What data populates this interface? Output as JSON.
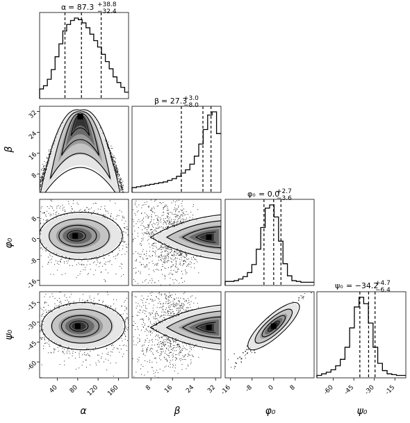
{
  "chart_data": {
    "type": "corner",
    "params": [
      "alpha",
      "beta",
      "phi0",
      "psi0"
    ],
    "axis_labels": [
      "α",
      "β",
      "φ₀",
      "ψ₀"
    ],
    "titles": [
      {
        "param": "alpha",
        "sym": "α",
        "median": "87.3",
        "plus": "+38.8",
        "minus": "−32.4"
      },
      {
        "param": "beta",
        "sym": "β",
        "median": "27.3",
        "plus": "+3.0",
        "minus": "−8.0"
      },
      {
        "param": "phi0",
        "sym": "φ₀",
        "median": "0.0",
        "plus": "+2.7",
        "minus": "−3.6"
      },
      {
        "param": "psi0",
        "sym": "ψ₀",
        "median": "−34.2",
        "plus": "+4.7",
        "minus": "−6.4"
      }
    ],
    "ranges": {
      "alpha": [
        5,
        180
      ],
      "beta": [
        1,
        34
      ],
      "phi0": [
        -18,
        15
      ],
      "psi0": [
        -72,
        -7
      ]
    },
    "ticks": {
      "alpha": [
        40,
        80,
        120,
        160
      ],
      "beta": [
        8,
        16,
        24,
        32
      ],
      "phi0": [
        -16,
        -8,
        0,
        8
      ],
      "psi0": [
        -60,
        -45,
        -30,
        -15
      ]
    },
    "quantiles": {
      "alpha": [
        54.9,
        87.3,
        126.1
      ],
      "beta": [
        19.3,
        27.3,
        30.3
      ],
      "phi0": [
        -3.6,
        0.0,
        2.7
      ],
      "psi0": [
        -40.6,
        -34.2,
        -29.5
      ]
    },
    "histograms": {
      "alpha": [
        0.12,
        0.16,
        0.24,
        0.36,
        0.52,
        0.68,
        0.84,
        0.92,
        0.97,
        1.0,
        0.98,
        0.94,
        0.88,
        0.8,
        0.72,
        0.64,
        0.55,
        0.46,
        0.37,
        0.27,
        0.2,
        0.14,
        0.08
      ],
      "beta": [
        0.06,
        0.07,
        0.08,
        0.09,
        0.1,
        0.11,
        0.12,
        0.13,
        0.15,
        0.17,
        0.2,
        0.24,
        0.28,
        0.35,
        0.45,
        0.6,
        0.78,
        0.96,
        1.0,
        0.73
      ],
      "phi0": [
        0.05,
        0.05,
        0.06,
        0.08,
        0.11,
        0.16,
        0.26,
        0.45,
        0.72,
        0.96,
        1.0,
        0.85,
        0.55,
        0.27,
        0.12,
        0.06,
        0.05,
        0.04,
        0.04,
        0.04
      ],
      "psi0": [
        0.03,
        0.05,
        0.07,
        0.1,
        0.15,
        0.23,
        0.38,
        0.62,
        0.88,
        1.0,
        0.92,
        0.68,
        0.38,
        0.18,
        0.09,
        0.05,
        0.04,
        0.03,
        0.03
      ]
    },
    "contour_centers": {
      "alpha-beta": [
        85,
        30
      ],
      "alpha-phi0": [
        75,
        1
      ],
      "beta-phi0": [
        29.5,
        0.5
      ],
      "alpha-psi0": [
        80,
        -33
      ],
      "beta-psi0": [
        29.5,
        -34
      ],
      "phi0-psi0": [
        0,
        -33
      ]
    },
    "grid": false
  }
}
